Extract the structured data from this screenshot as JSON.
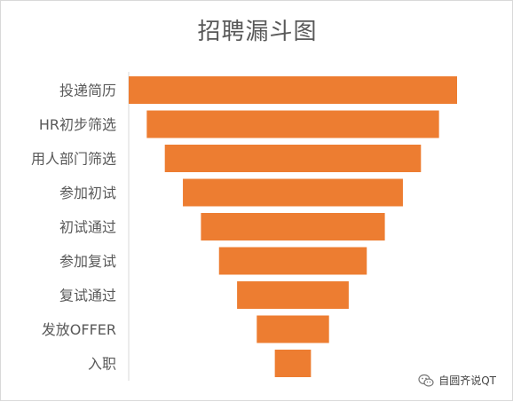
{
  "chart_data": {
    "type": "bar",
    "title": "招聘漏斗图",
    "orientation": "horizontal-funnel",
    "categories": [
      "投递简历",
      "HR初步筛选",
      "用人部门筛选",
      "参加初试",
      "初试通过",
      "参加复试",
      "复试通过",
      "发放OFFER",
      "入职"
    ],
    "values": [
      100,
      89,
      78,
      67,
      56,
      45,
      34,
      22,
      11
    ],
    "xlim": [
      0,
      100
    ],
    "grid": false,
    "legend": "none",
    "bar_color": "#ED7D31"
  },
  "watermark": {
    "text": "自圆齐说QT",
    "icon": "wechat-icon"
  }
}
